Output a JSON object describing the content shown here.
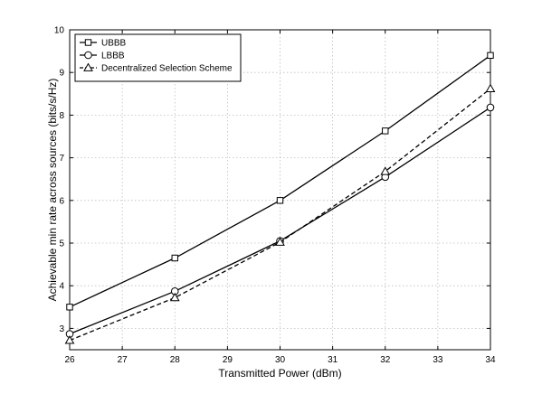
{
  "chart_data": {
    "type": "line",
    "title": "",
    "xlabel": "Transmitted Power (dBm)",
    "ylabel": "Achievable min rate across sources (bits/s/Hz)",
    "xlim": [
      26,
      34
    ],
    "ylim": [
      2.5,
      10
    ],
    "grid": true,
    "legend_position": "top-left",
    "xticks": [
      26,
      27,
      28,
      29,
      30,
      31,
      32,
      33,
      34
    ],
    "yticks": [
      3,
      4,
      5,
      6,
      7,
      8,
      9,
      10
    ],
    "x": [
      26,
      28,
      30,
      32,
      34
    ],
    "series": [
      {
        "name": "UBBB",
        "values": [
          3.5,
          4.65,
          6.0,
          7.63,
          9.4
        ],
        "marker": "square",
        "line": "solid",
        "color": "#000000"
      },
      {
        "name": "LBBB",
        "values": [
          2.87,
          3.87,
          5.05,
          6.55,
          8.18
        ],
        "marker": "circle",
        "line": "solid",
        "color": "#000000"
      },
      {
        "name": "Decentralized Selection Scheme",
        "values": [
          2.72,
          3.72,
          5.02,
          6.68,
          8.62
        ],
        "marker": "triangle",
        "line": "dashed",
        "color": "#000000"
      }
    ]
  }
}
